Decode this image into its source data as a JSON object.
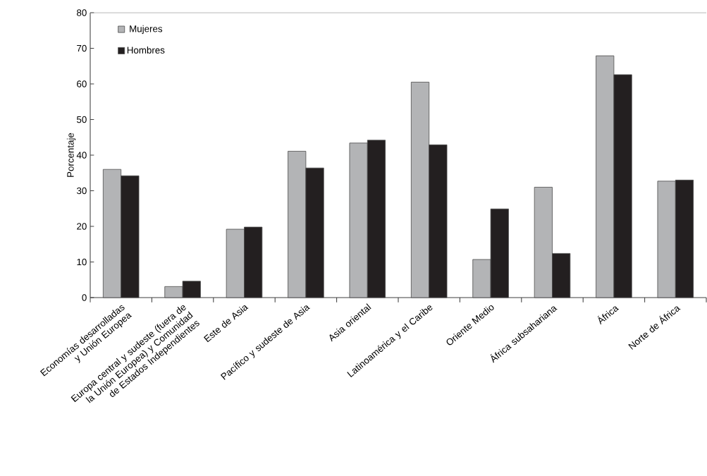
{
  "chart_data": {
    "type": "bar",
    "ylabel": "Porcentaje",
    "categories": [
      "Economías desarrolladas y Unión Europea",
      "Europa central y sudeste (fuera de la Unión Europea) y Comunidad de Estados Independientes",
      "Este de Asia",
      "Pacífico y sudeste de Asia",
      "Asia oriental",
      "Latinoamérica y el Caribe",
      "Oriente Medio",
      "África subsahariana",
      "África",
      "Norte de África"
    ],
    "series": [
      {
        "name": "Mujeres",
        "color": "#b3b4b6",
        "values": [
          36.0,
          3.1,
          19.2,
          41.1,
          43.4,
          60.5,
          10.7,
          31.0,
          67.9,
          32.7
        ]
      },
      {
        "name": "Hombres",
        "color": "#231f20",
        "values": [
          34.2,
          4.6,
          19.8,
          36.4,
          44.2,
          42.9,
          24.9,
          12.4,
          62.6,
          33.0
        ]
      }
    ],
    "ylim": [
      0,
      80
    ],
    "yticks": [
      0,
      10,
      20,
      30,
      40,
      50,
      60,
      70,
      80
    ],
    "legend": "top left"
  }
}
